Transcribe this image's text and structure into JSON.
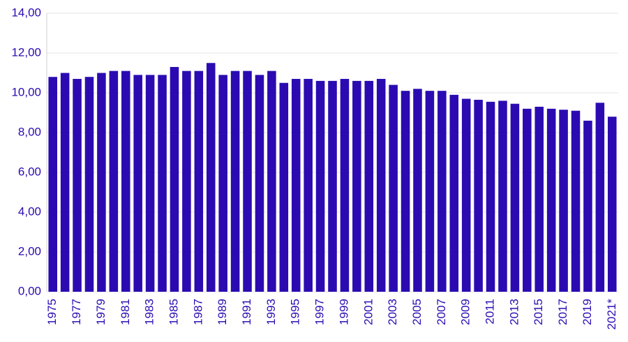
{
  "chart_data": {
    "type": "bar",
    "categories": [
      "1975",
      null,
      "1977",
      null,
      "1979",
      null,
      "1981",
      null,
      "1983",
      null,
      "1985",
      null,
      "1987",
      null,
      "1989",
      null,
      "1991",
      null,
      "1993",
      null,
      "1995",
      null,
      "1997",
      null,
      "1999",
      null,
      "2001",
      null,
      "2003",
      null,
      "2005",
      null,
      "2007",
      null,
      "2009",
      null,
      "2011",
      null,
      "2013",
      null,
      "2015",
      null,
      "2017",
      null,
      "2019",
      null,
      "2021*"
    ],
    "values": [
      10.8,
      11.0,
      10.7,
      10.8,
      11.0,
      11.1,
      11.1,
      10.9,
      10.9,
      10.9,
      11.3,
      11.1,
      11.1,
      11.5,
      10.9,
      11.1,
      11.1,
      10.9,
      11.1,
      10.5,
      10.7,
      10.7,
      10.6,
      10.6,
      10.7,
      10.6,
      10.6,
      10.7,
      10.4,
      10.1,
      10.2,
      10.1,
      10.1,
      9.9,
      9.7,
      9.65,
      9.55,
      9.6,
      9.45,
      9.2,
      9.3,
      9.2,
      9.15,
      9.1,
      8.6,
      9.5,
      8.8
    ],
    "color": "#2b0bb1",
    "ylim": [
      0,
      14
    ],
    "yticks": [
      {
        "value": 0,
        "label": "0,00"
      },
      {
        "value": 2,
        "label": "2,00"
      },
      {
        "value": 4,
        "label": "4,00"
      },
      {
        "value": 6,
        "label": "6,00"
      },
      {
        "value": 8,
        "label": "8,00"
      },
      {
        "value": 10,
        "label": "10,00"
      },
      {
        "value": 12,
        "label": "12,00"
      },
      {
        "value": 14,
        "label": "14,00"
      }
    ],
    "grid": true
  }
}
